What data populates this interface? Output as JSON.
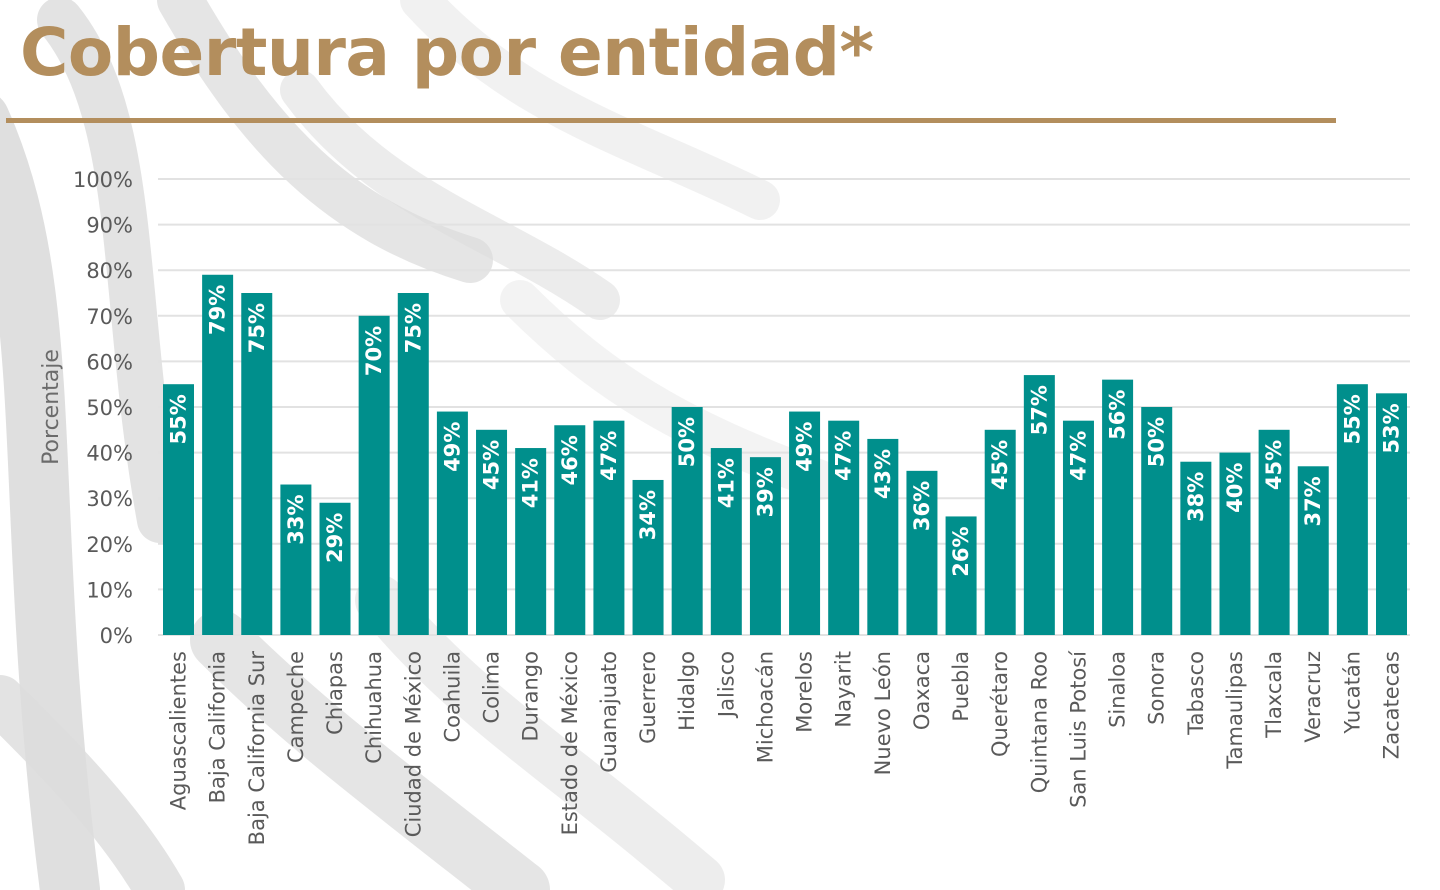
{
  "colors": {
    "title": "#b38e5d",
    "bar": "#008f8c",
    "bar_label": "#ffffff",
    "grid": "#e2e2e2",
    "axis_text": "#5a5a5a",
    "background_pattern": "#d9d9d9"
  },
  "chart_data": {
    "type": "bar",
    "title": "Cobertura por entidad*",
    "xlabel": "",
    "ylabel": "Porcentaje",
    "ylim": [
      0,
      100
    ],
    "yticks": [
      "0%",
      "10%",
      "20%",
      "30%",
      "40%",
      "50%",
      "60%",
      "70%",
      "80%",
      "90%",
      "100%"
    ],
    "grid": true,
    "legend": "none",
    "categories": [
      "Aguascalientes",
      "Baja California",
      "Baja California Sur",
      "Campeche",
      "Chiapas",
      "Chihuahua",
      "Ciudad de México",
      "Coahuila",
      "Colima",
      "Durango",
      "Estado de México",
      "Guanajuato",
      "Guerrero",
      "Hidalgo",
      "Jalisco",
      "Michoacán",
      "Morelos",
      "Nayarit",
      "Nuevo León",
      "Oaxaca",
      "Puebla",
      "Querétaro",
      "Quintana Roo",
      "San Luis Potosí",
      "Sinaloa",
      "Sonora",
      "Tabasco",
      "Tamaulipas",
      "Tlaxcala",
      "Veracruz",
      "Yucatán",
      "Zacatecas"
    ],
    "values": [
      55,
      79,
      75,
      33,
      29,
      70,
      75,
      49,
      45,
      41,
      46,
      47,
      34,
      50,
      41,
      39,
      49,
      47,
      43,
      36,
      26,
      45,
      57,
      47,
      56,
      50,
      38,
      40,
      45,
      37,
      55,
      53
    ],
    "data_labels": [
      "55%",
      "79%",
      "75%",
      "33%",
      "29%",
      "70%",
      "75%",
      "49%",
      "45%",
      "41%",
      "46%",
      "47%",
      "34%",
      "50%",
      "41%",
      "39%",
      "49%",
      "47%",
      "43%",
      "36%",
      "26%",
      "45%",
      "57%",
      "47%",
      "56%",
      "50%",
      "38%",
      "40%",
      "45%",
      "37%",
      "55%",
      "53%"
    ]
  }
}
